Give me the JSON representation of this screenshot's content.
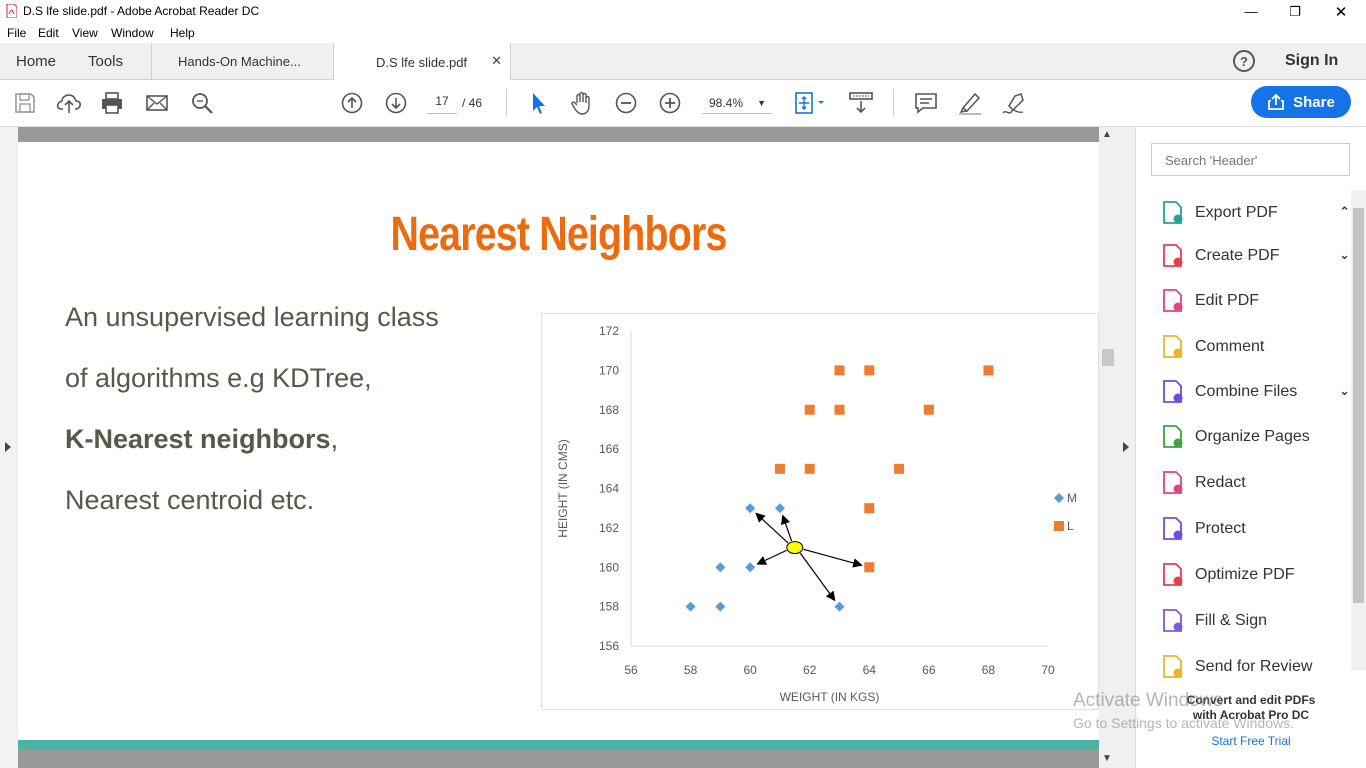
{
  "window": {
    "title": "D.S lfe slide.pdf - Adobe Acrobat Reader DC",
    "minimize": "—",
    "maximize": "❐",
    "close": "✕"
  },
  "menu": {
    "items": [
      "File",
      "Edit",
      "View",
      "Window",
      "Help"
    ]
  },
  "tabs": {
    "home": "Home",
    "tools": "Tools",
    "doc1": "Hands-On Machine...",
    "doc2": "D.S lfe slide.pdf",
    "close": "✕",
    "help": "?",
    "sign_in": "Sign In"
  },
  "toolbar": {
    "page_current": "17",
    "page_total": "/  46",
    "zoom": "98.4%",
    "share": "Share",
    "icons": [
      "save-icon",
      "upload-icon",
      "print-icon",
      "email-icon",
      "search-icon",
      "prev-page-icon",
      "next-page-icon",
      "select-cursor-icon",
      "hand-icon",
      "zoom-out-icon",
      "zoom-in-icon",
      "fit-page-icon",
      "scroll-mode-icon",
      "comment-icon",
      "highlight-icon",
      "sign-icon"
    ]
  },
  "slide": {
    "title": "Nearest Neighbors",
    "line1": "An unsupervised learning class",
    "line2": "of algorithms e.g KDTree,",
    "line3_bold": "K-Nearest neighbors",
    "line3_rest": ",",
    "line4": "Nearest centroid etc."
  },
  "chart_data": {
    "type": "scatter",
    "xlabel": "WEIGHT (IN KGS)",
    "ylabel": "HEIGHT (IN CMS)",
    "xlim": [
      56,
      70
    ],
    "ylim": [
      156,
      172
    ],
    "x_ticks": [
      56,
      58,
      60,
      62,
      64,
      66,
      68,
      70
    ],
    "y_ticks": [
      156,
      158,
      160,
      162,
      164,
      166,
      168,
      170,
      172
    ],
    "legend_position": "right",
    "series": [
      {
        "name": "M",
        "marker": "diamond",
        "color": "#5b9bd5",
        "points": [
          [
            58,
            158
          ],
          [
            59,
            158
          ],
          [
            59,
            160
          ],
          [
            60,
            160
          ],
          [
            60,
            163
          ],
          [
            61,
            163
          ],
          [
            63,
            158
          ]
        ]
      },
      {
        "name": "L",
        "marker": "square",
        "color": "#ed7d31",
        "points": [
          [
            61,
            165
          ],
          [
            62,
            165
          ],
          [
            62,
            168
          ],
          [
            63,
            168
          ],
          [
            63,
            170
          ],
          [
            64,
            170
          ],
          [
            65,
            165
          ],
          [
            66,
            168
          ],
          [
            68,
            170
          ],
          [
            64,
            163
          ],
          [
            64,
            160
          ]
        ]
      }
    ],
    "query_point": {
      "x": 61.5,
      "y": 161,
      "color": "#ffff00"
    },
    "arrows_to": [
      [
        60,
        163
      ],
      [
        61,
        163
      ],
      [
        60,
        160
      ],
      [
        63,
        158
      ],
      [
        64,
        160
      ]
    ]
  },
  "side_panel": {
    "search_placeholder": "Search 'Header'",
    "tools": [
      {
        "label": "Export PDF",
        "icon": "export-pdf-icon",
        "color": "#2aa198",
        "chevron": "⌃"
      },
      {
        "label": "Create PDF",
        "icon": "create-pdf-icon",
        "color": "#e4404a",
        "chevron": "⌄"
      },
      {
        "label": "Edit PDF",
        "icon": "edit-pdf-icon",
        "color": "#e0457b",
        "chevron": ""
      },
      {
        "label": "Comment",
        "icon": "comment-tool-icon",
        "color": "#e8b828",
        "chevron": ""
      },
      {
        "label": "Combine Files",
        "icon": "combine-files-icon",
        "color": "#6d4ee0",
        "chevron": "⌄"
      },
      {
        "label": "Organize Pages",
        "icon": "organize-pages-icon",
        "color": "#3ea43e",
        "chevron": ""
      },
      {
        "label": "Redact",
        "icon": "redact-icon",
        "color": "#e0457b",
        "chevron": ""
      },
      {
        "label": "Protect",
        "icon": "protect-icon",
        "color": "#6d4ee0",
        "chevron": ""
      },
      {
        "label": "Optimize PDF",
        "icon": "optimize-pdf-icon",
        "color": "#e4404a",
        "chevron": ""
      },
      {
        "label": "Fill & Sign",
        "icon": "fill-sign-icon",
        "color": "#7b5be0",
        "chevron": ""
      },
      {
        "label": "Send for Review",
        "icon": "send-review-icon",
        "color": "#e8b828",
        "chevron": ""
      }
    ],
    "promo_line1": "Convert and edit PDFs",
    "promo_line2": "with Acrobat Pro DC",
    "promo_link": "Start Free Trial"
  },
  "watermark": {
    "line1": "Activate Windows",
    "line2": "Go to Settings to activate Windows."
  }
}
